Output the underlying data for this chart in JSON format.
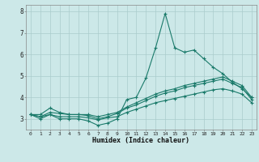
{
  "xlabel": "Humidex (Indice chaleur)",
  "x": [
    0,
    1,
    2,
    3,
    4,
    5,
    6,
    7,
    8,
    9,
    10,
    11,
    12,
    13,
    14,
    15,
    16,
    17,
    18,
    19,
    20,
    21,
    22,
    23
  ],
  "line1": [
    3.2,
    3.0,
    3.2,
    3.0,
    3.0,
    3.0,
    2.9,
    2.7,
    2.8,
    3.0,
    3.9,
    4.0,
    4.9,
    6.3,
    7.9,
    6.3,
    6.1,
    6.2,
    5.8,
    5.4,
    5.1,
    4.7,
    4.4,
    4.0
  ],
  "line2": [
    3.2,
    3.2,
    3.5,
    3.3,
    3.2,
    3.2,
    3.2,
    3.1,
    3.2,
    3.3,
    3.55,
    3.75,
    3.95,
    4.15,
    4.3,
    4.4,
    4.55,
    4.65,
    4.75,
    4.85,
    4.95,
    4.75,
    4.55,
    4.0
  ],
  "line3": [
    3.2,
    3.1,
    3.3,
    3.25,
    3.2,
    3.2,
    3.15,
    3.0,
    3.1,
    3.25,
    3.5,
    3.65,
    3.85,
    4.05,
    4.2,
    4.3,
    4.45,
    4.55,
    4.65,
    4.75,
    4.85,
    4.65,
    4.45,
    3.9
  ],
  "line4": [
    3.2,
    3.1,
    3.2,
    3.1,
    3.1,
    3.1,
    3.05,
    2.95,
    3.05,
    3.1,
    3.3,
    3.45,
    3.6,
    3.75,
    3.85,
    3.95,
    4.05,
    4.15,
    4.25,
    4.35,
    4.4,
    4.3,
    4.15,
    3.75
  ],
  "color": "#1a7a6a",
  "bg_color": "#cce8e8",
  "grid_color": "#aacccc",
  "ylim": [
    2.5,
    8.3
  ],
  "xlim": [
    -0.5,
    23.5
  ],
  "yticks": [
    3,
    4,
    5,
    6,
    7,
    8
  ],
  "xticks": [
    0,
    1,
    2,
    3,
    4,
    5,
    6,
    7,
    8,
    9,
    10,
    11,
    12,
    13,
    14,
    15,
    16,
    17,
    18,
    19,
    20,
    21,
    22,
    23
  ]
}
